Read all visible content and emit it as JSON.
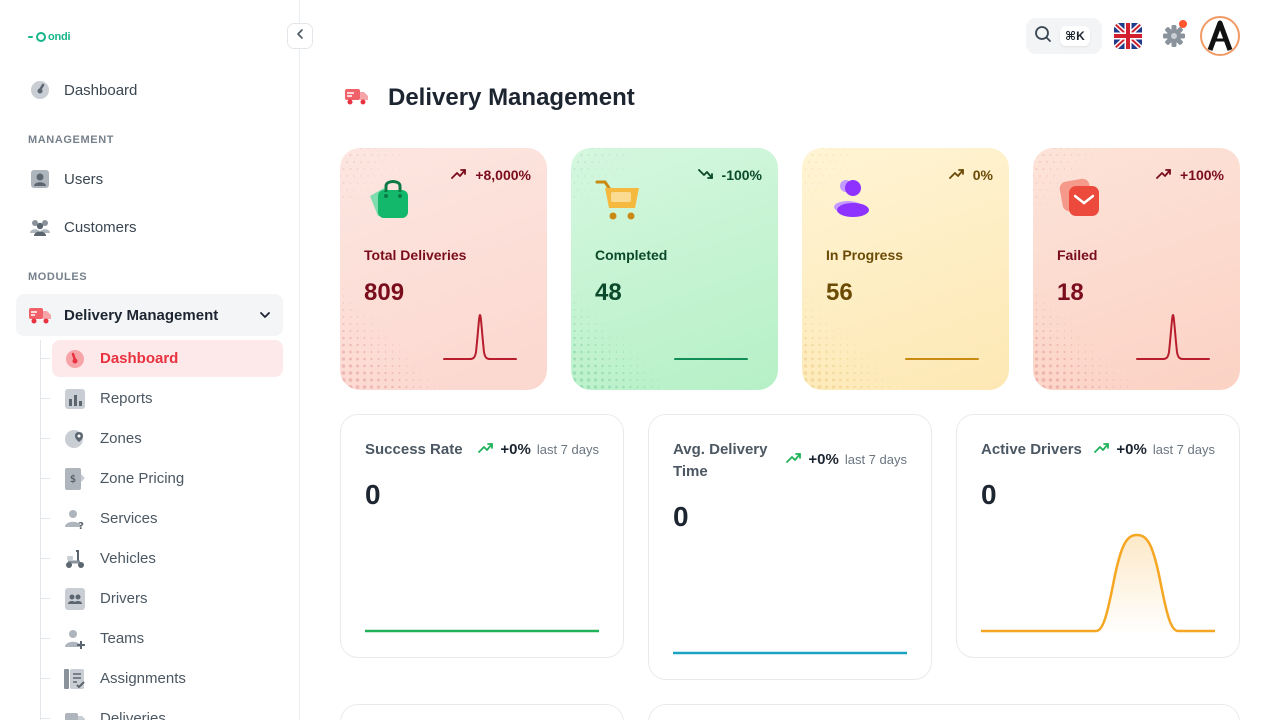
{
  "app": {
    "logo_text": "ondi"
  },
  "sidebar": {
    "top_item": {
      "label": "Dashboard",
      "icon": "speedometer-icon"
    },
    "sections": {
      "management": "MANAGEMENT",
      "modules": "MODULES"
    },
    "management_items": [
      {
        "label": "Users",
        "icon": "user-icon"
      },
      {
        "label": "Customers",
        "icon": "users-group-icon"
      }
    ],
    "group": {
      "label": "Delivery Management",
      "icon": "truck-icon",
      "expanded": true
    },
    "sub_items": [
      {
        "label": "Dashboard",
        "icon": "speedometer-icon",
        "active": true
      },
      {
        "label": "Reports",
        "icon": "bar-chart-icon"
      },
      {
        "label": "Zones",
        "icon": "map-pin-icon"
      },
      {
        "label": "Zone Pricing",
        "icon": "price-tag-icon"
      },
      {
        "label": "Services",
        "icon": "user-question-icon"
      },
      {
        "label": "Vehicles",
        "icon": "scooter-icon"
      },
      {
        "label": "Drivers",
        "icon": "id-card-icon"
      },
      {
        "label": "Teams",
        "icon": "user-add-icon"
      },
      {
        "label": "Assignments",
        "icon": "checklist-icon"
      },
      {
        "label": "Deliveries",
        "icon": "truck-icon"
      }
    ]
  },
  "header": {
    "search_shortcut": "⌘K",
    "language": "English (UK)",
    "notification_dot": true
  },
  "page": {
    "title": "Delivery Management"
  },
  "stat_cards": [
    {
      "label": "Total Deliveries",
      "value": "809",
      "trend": "+8,000%",
      "direction": "up",
      "bg_from": "#fde6e0",
      "bg_to": "#fbd7cf",
      "text_color": "#7a0d1d",
      "accent": "#b71d2c",
      "spark": "peak"
    },
    {
      "label": "Completed",
      "value": "48",
      "trend": "-100%",
      "direction": "down",
      "bg_from": "#d5f7df",
      "bg_to": "#b6f0c6",
      "text_color": "#0a4a2a",
      "accent": "#118d57",
      "spark": "flat"
    },
    {
      "label": "In Progress",
      "value": "56",
      "trend": "0%",
      "direction": "up",
      "bg_from": "#fff4d4",
      "bg_to": "#fde8b4",
      "text_color": "#6b4a06",
      "accent": "#c98a14",
      "spark": "flat"
    },
    {
      "label": "Failed",
      "value": "18",
      "trend": "+100%",
      "direction": "up",
      "bg_from": "#fde3d9",
      "bg_to": "#fbd2c4",
      "text_color": "#7a0d1d",
      "accent": "#b71d2c",
      "spark": "peak"
    }
  ],
  "metric_cards": [
    {
      "label": "Success Rate",
      "value": "0",
      "trend": "+0%",
      "period": "last 7 days",
      "line_color": "#22b35a",
      "shape": "flat"
    },
    {
      "label": "Avg. Delivery Time",
      "value": "0",
      "trend": "+0%",
      "period": "last 7 days",
      "line_color": "#1aa2c2",
      "shape": "flat"
    },
    {
      "label": "Active Drivers",
      "value": "0",
      "trend": "+0%",
      "period": "last 7 days",
      "line_color": "#f5a623",
      "shape": "peak"
    }
  ]
}
